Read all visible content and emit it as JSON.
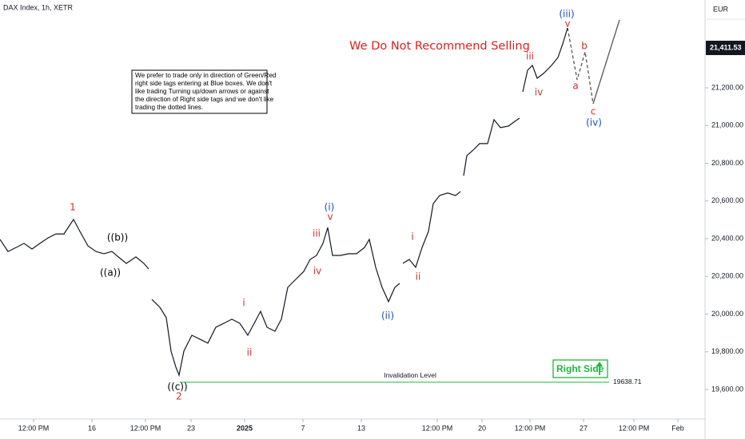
{
  "chart_data": {
    "type": "line",
    "title": "DAX Index, 1h, XETR",
    "currency": "EUR",
    "headline": "We Do Not Recommend Selling",
    "note_lines": [
      "We prefer to trade only in direction of Green/Red",
      "right side tags entering at Blue boxes. We don't",
      "like trading Turning up/down arrows or against",
      "the direction of Right side tags and we don't like",
      "trading the dotted lines."
    ],
    "invalidation": {
      "label": "Invalidation Level",
      "value": 19638.71,
      "value_label": "19638.71"
    },
    "last_price": {
      "value": 21411.53,
      "label": "21,411.53"
    },
    "right_side": "Right Side",
    "color": "#131722",
    "x": [
      0,
      2.5,
      5,
      7.5,
      10,
      12.5,
      15,
      17.5,
      20,
      23,
      25,
      27.5,
      30,
      32.5,
      35,
      37,
      39.5,
      42.5,
      45,
      46.5,
      47,
      47.5,
      50,
      52,
      53.5,
      55,
      56,
      57.5,
      60,
      62.5,
      65,
      67.5,
      70,
      72.5,
      75,
      77.5,
      79.5,
      81.5,
      83.5,
      86,
      88,
      90,
      92.5,
      95,
      97,
      99,
      101,
      102.5,
      104,
      106.5,
      109,
      111.5,
      114,
      115.5,
      117.5,
      119.5,
      121.5,
      123.5,
      125,
      125.5,
      126,
      128,
      130,
      132,
      134,
      135.5,
      137.5,
      140,
      142.5,
      144,
      144.5,
      145,
      146,
      148,
      150,
      152.5,
      154.5,
      156.5,
      159,
      161,
      162.5,
      163,
      163.5,
      165,
      166.5,
      168,
      170,
      172.5,
      174.5,
      176,
      177.5
    ],
    "values": [
      20396,
      20332,
      20353,
      20375,
      20345,
      20375,
      20404,
      20425,
      20425,
      20502,
      20438,
      20362,
      20332,
      20320,
      20332,
      20303,
      20269,
      20303,
      20269,
      20239,
      null,
      20078,
      20036,
      19981,
      19803,
      19719,
      19676,
      19803,
      19888,
      19867,
      19846,
      19930,
      19951,
      19973,
      19951,
      19888,
      19951,
      20015,
      19930,
      19909,
      19973,
      20142,
      20184,
      20226,
      20290,
      20311,
      20375,
      20459,
      20311,
      20311,
      20320,
      20320,
      20353,
      20396,
      20248,
      20142,
      20066,
      20142,
      20163,
      null,
      20269,
      20290,
      20248,
      20353,
      20438,
      20586,
      20629,
      20642,
      20629,
      20650,
      null,
      20734,
      20840,
      20870,
      20904,
      20904,
      21031,
      20989,
      20997,
      21022,
      21039,
      null,
      21179,
      21293,
      21319,
      21251,
      21276,
      21319,
      21361,
      21433,
      21517
    ],
    "xlim": [
      0,
      220.5
    ],
    "xticks": [
      {
        "value": 10.5,
        "label": "12:00 PM"
      },
      {
        "value": 28.75,
        "label": "16"
      },
      {
        "value": 45.5,
        "label": "12:00 PM"
      },
      {
        "value": 59.75,
        "label": "23"
      },
      {
        "value": 76.5,
        "label": "2025"
      },
      {
        "value": 94.75,
        "label": "7"
      },
      {
        "value": 113,
        "label": "13"
      },
      {
        "value": 136.75,
        "label": "12:00 PM"
      },
      {
        "value": 150.75,
        "label": "20"
      },
      {
        "value": 165.75,
        "label": "12:00 PM"
      },
      {
        "value": 182.5,
        "label": "27"
      },
      {
        "value": 198.25,
        "label": "12:00 PM"
      },
      {
        "value": 212,
        "label": "Feb"
      }
    ],
    "ylim": [
      19443.4,
      21665.6
    ],
    "yticks": [
      {
        "value": 19600,
        "label": "19,600.00"
      },
      {
        "value": 19800,
        "label": "19,800.00"
      },
      {
        "value": 20000,
        "label": "20,000.00"
      },
      {
        "value": 20200,
        "label": "20,200.00"
      },
      {
        "value": 20400,
        "label": "20,400.00"
      },
      {
        "value": 20600,
        "label": "20,600.00"
      },
      {
        "value": 20800,
        "label": "20,800.00"
      },
      {
        "value": 21000,
        "label": "21,000.00"
      },
      {
        "value": 21200,
        "label": "21,200.00"
      }
    ],
    "annotations": [
      {
        "text": "1",
        "color": "#d32f2f"
      },
      {
        "text": "((b))",
        "color": "#000000"
      },
      {
        "text": "((a))",
        "color": "#000000"
      },
      {
        "text": "((c))",
        "color": "#000000"
      },
      {
        "text": "2",
        "color": "#d32f2f"
      },
      {
        "text": "i",
        "color": "#d32f2f"
      },
      {
        "text": "ii",
        "color": "#d32f2f"
      },
      {
        "text": "(i)",
        "color": "#1f4fb4"
      },
      {
        "text": "v",
        "color": "#d32f2f"
      },
      {
        "text": "iii",
        "color": "#d32f2f"
      },
      {
        "text": "iv",
        "color": "#d32f2f"
      },
      {
        "text": "(ii)",
        "color": "#1f4fb4"
      },
      {
        "text": "i",
        "color": "#d32f2f"
      },
      {
        "text": "ii",
        "color": "#d32f2f"
      },
      {
        "text": "iii",
        "color": "#d32f2f"
      },
      {
        "text": "iv",
        "color": "#d32f2f"
      },
      {
        "text": "v",
        "color": "#d32f2f"
      },
      {
        "text": "(iii)",
        "color": "#1f4fb4"
      },
      {
        "text": "a",
        "color": "#d32f2f"
      },
      {
        "text": "b",
        "color": "#d32f2f"
      },
      {
        "text": "c",
        "color": "#d32f2f"
      },
      {
        "text": "(iv)",
        "color": "#1f4fb4"
      }
    ]
  }
}
